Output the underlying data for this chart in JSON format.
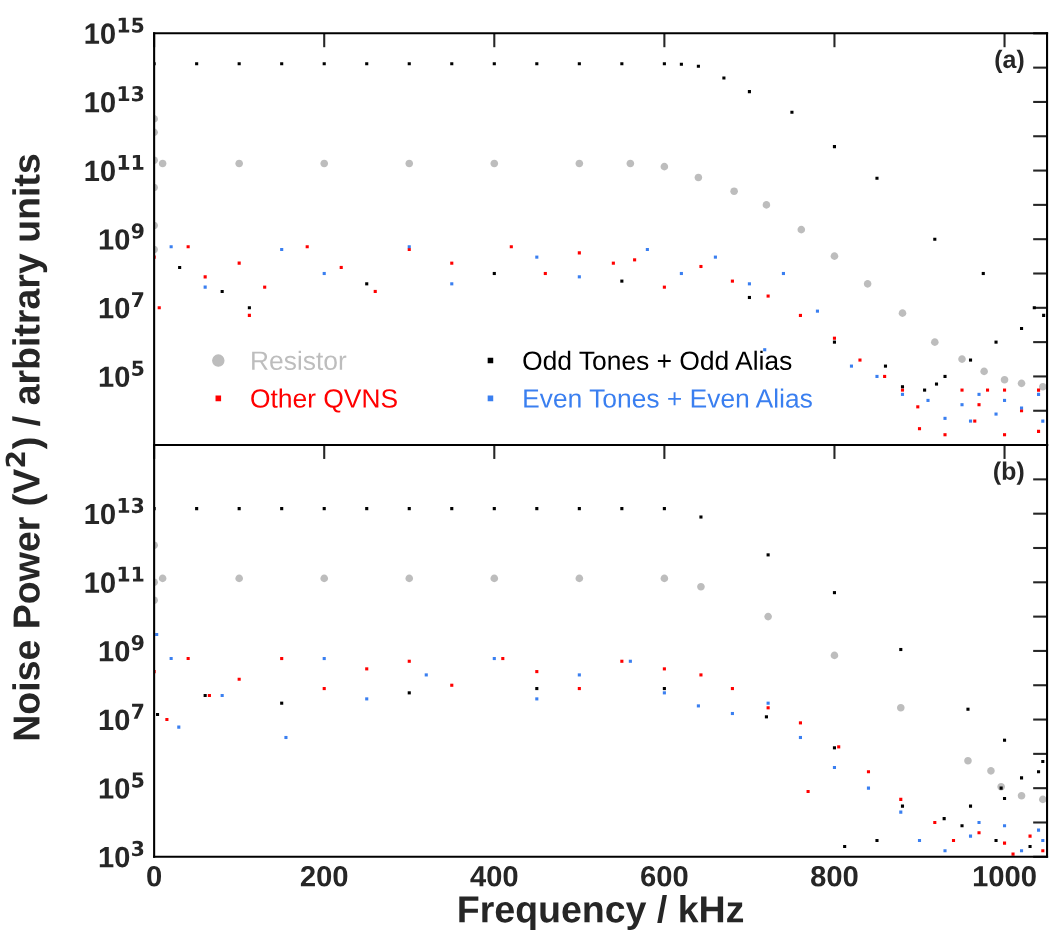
{
  "chart_data": [
    {
      "type": "scatter",
      "ylabel": "Noise Power (V$^{2}$) / arbitrary units",
      "annotations": [
        "(a)"
      ],
      "log": "y",
      "grid": false,
      "legend": "bottom",
      "tick_labels": "y",
      "xlim": [
        0,
        1050
      ],
      "xticks": [
        {
          "value": 0,
          "label": null
        },
        {
          "value": 200,
          "label": null
        },
        {
          "value": 400,
          "label": null
        },
        {
          "value": 600,
          "label": null
        },
        {
          "value": 800,
          "label": null
        },
        {
          "value": 1000,
          "label": null
        }
      ],
      "ylim": [
        1000.0,
        1000000000000000.0
      ],
      "yticks": [
        {
          "value": 10000.0,
          "label": null
        },
        {
          "value": 100000.0,
          "label": "10$^{5}$"
        },
        {
          "value": 1000000.0,
          "label": null
        },
        {
          "value": 10000000.0,
          "label": "10$^{7}$"
        },
        {
          "value": 100000000.0,
          "label": null
        },
        {
          "value": 1000000000.0,
          "label": "10$^{9}$"
        },
        {
          "value": 10000000000.0,
          "label": null
        },
        {
          "value": 100000000000.0,
          "label": "10$^{11}$"
        },
        {
          "value": 1000000000000.0,
          "label": null
        },
        {
          "value": 10000000000000.0,
          "label": "10$^{13}$"
        },
        {
          "value": 100000000000000.0,
          "label": null
        },
        {
          "value": 1000000000000000.0,
          "label": "10$^{15}$"
        }
      ],
      "series": [
        {
          "name": "Resistor",
          "color": "#bdbdbd",
          "marker": "circle",
          "x": [
            0,
            0,
            0,
            0,
            0,
            0,
            10,
            100,
            200,
            300,
            400,
            500,
            560,
            600,
            640,
            682,
            720,
            761,
            800,
            839,
            880,
            918,
            950,
            976,
            1000,
            1020,
            1045
          ],
          "values": [
            3200000000000.0,
            1300000000000.0,
            200000000000.0,
            32000000000.0,
            2500000000.0,
            500000000.0,
            160000000000.0,
            160000000000.0,
            160000000000.0,
            160000000000.0,
            160000000000.0,
            160000000000.0,
            160000000000.0,
            130000000000.0,
            63000000000.0,
            25000000000.0,
            10000000000.0,
            1900000000.0,
            320000000.0,
            50000000.0,
            7000000.0,
            1000000.0,
            320000.0,
            140000.0,
            80000.0,
            63000.0,
            50000.0
          ]
        },
        {
          "name": "Other QVNS",
          "color": "#ff0000",
          "marker": "square",
          "x": [
            0,
            6,
            40,
            60,
            100,
            112,
            130,
            180,
            220,
            260,
            300,
            350,
            420,
            460,
            500,
            540,
            565,
            600,
            643,
            680,
            722,
            760,
            800,
            830,
            859,
            880,
            898,
            900,
            930,
            950,
            980,
            1000,
            1040,
            965,
            1000,
            1040,
            1020,
            970
          ],
          "values": [
            300000000.0,
            10000000.0,
            600000000.0,
            80000000.0,
            200000000.0,
            6000000.0,
            40000000.0,
            600000000.0,
            150000000.0,
            30000000.0,
            500000000.0,
            200000000.0,
            600000000.0,
            100000000.0,
            400000000.0,
            200000000.0,
            250000000.0,
            40000000.0,
            160000000.0,
            60000000.0,
            22000000.0,
            6000000.0,
            1300000.0,
            300000.0,
            100000.0,
            40000.0,
            13000.0,
            3000.0,
            2000.0,
            40000.0,
            40000.0,
            40000.0,
            40000.0,
            5000.0,
            2000.0,
            2500.0,
            10000.0,
            15000.0
          ]
        },
        {
          "name": "Odd Tones + Odd Alias",
          "color": "#000000",
          "marker": "square",
          "x": [
            0,
            50,
            100,
            150,
            200,
            250,
            300,
            350,
            400,
            450,
            500,
            550,
            600,
            620,
            640,
            670,
            700,
            750,
            800,
            850,
            918,
            975,
            1035,
            1046,
            1020,
            990,
            960,
            930,
            906,
            920,
            30,
            112,
            80,
            250,
            400,
            550,
            700,
            800,
            860,
            880
          ],
          "values": [
            130000000000000.0,
            130000000000000.0,
            130000000000000.0,
            130000000000000.0,
            130000000000000.0,
            130000000000000.0,
            130000000000000.0,
            130000000000000.0,
            130000000000000.0,
            130000000000000.0,
            130000000000000.0,
            130000000000000.0,
            130000000000000.0,
            125000000000000.0,
            110000000000000.0,
            50000000000000.0,
            20000000000000.0,
            5000000000000.0,
            500000000000.0,
            60000000000.0,
            1000000000.0,
            100000000.0,
            10000000.0,
            6000000.0,
            2500000.0,
            1000000.0,
            300000.0,
            100000.0,
            40000.0,
            60000.0,
            150000000.0,
            10000000.0,
            30000000.0,
            50000000.0,
            100000000.0,
            60000000.0,
            20000000.0,
            1000000.0,
            200000.0,
            50000.0
          ]
        },
        {
          "name": "Even Tones + Even Alias",
          "color": "#3a7ff0",
          "marker": "square",
          "x": [
            20,
            60,
            150,
            200,
            300,
            350,
            450,
            500,
            580,
            620,
            660,
            700,
            718,
            740,
            780,
            820,
            850,
            880,
            910,
            930,
            950,
            960,
            970,
            990,
            1000,
            1020,
            1040,
            1045
          ],
          "values": [
            600000000.0,
            40000000.0,
            500000000.0,
            100000000.0,
            600000000.0,
            50000000.0,
            300000000.0,
            80000000.0,
            500000000.0,
            100000000.0,
            300000000.0,
            50000000.0,
            600000.0,
            100000000.0,
            8000000.0,
            200000.0,
            100000.0,
            30000.0,
            20000.0,
            6000.0,
            15000.0,
            5000.0,
            30000.0,
            8000.0,
            20000.0,
            12000.0,
            30000.0,
            5000.0
          ]
        }
      ]
    },
    {
      "type": "scatter",
      "xlabel": "Frequency / kHz",
      "annotations": [
        "(b)"
      ],
      "log": "y",
      "grid": false,
      "xlim": [
        0,
        1050
      ],
      "xticks": [
        0,
        200,
        400,
        600,
        800,
        1000
      ],
      "ylim": [
        1000.0,
        1000000000000000.0
      ],
      "yticks": [
        {
          "value": 1000.0,
          "label": "10$^{3}$"
        },
        {
          "value": 10000.0,
          "label": null
        },
        {
          "value": 100000.0,
          "label": "10$^{5}$"
        },
        {
          "value": 1000000.0,
          "label": null
        },
        {
          "value": 10000000.0,
          "label": "10$^{7}$"
        },
        {
          "value": 100000000.0,
          "label": null
        },
        {
          "value": 1000000000.0,
          "label": "10$^{9}$"
        },
        {
          "value": 10000000000.0,
          "label": null
        },
        {
          "value": 100000000000.0,
          "label": "10$^{11}$"
        },
        {
          "value": 1000000000000.0,
          "label": null
        },
        {
          "value": 10000000000000.0,
          "label": "10$^{13}$"
        },
        {
          "value": 100000000000000.0,
          "label": null
        }
      ],
      "series": [
        {
          "color": "#bdbdbd",
          "marker": "circle",
          "x": [
            0,
            0,
            0,
            10,
            100,
            200,
            300,
            400,
            500,
            600,
            643,
            722,
            800,
            878,
            957,
            984,
            996,
            1020,
            1045
          ],
          "values": [
            1200000000000.0,
            100000000000.0,
            30000000000.0,
            130000000000.0,
            130000000000.0,
            130000000000.0,
            130000000000.0,
            130000000000.0,
            130000000000.0,
            130000000000.0,
            74000000000.0,
            10000000000.0,
            740000000.0,
            22000000.0,
            630000.0,
            320000.0,
            110000.0,
            60000.0,
            47000.0
          ]
        },
        {
          "color": "#ff0000",
          "marker": "square",
          "x": [
            0,
            15,
            40,
            65,
            100,
            150,
            200,
            250,
            300,
            350,
            410,
            450,
            500,
            550,
            600,
            643,
            680,
            722,
            769,
            760,
            805,
            840,
            878,
            918,
            940,
            970,
            1000,
            1030,
            1045,
            1010
          ],
          "values": [
            250000000.0,
            10000000.0,
            600000000.0,
            50000000.0,
            150000000.0,
            600000000.0,
            80000000.0,
            300000000.0,
            500000000.0,
            100000000.0,
            600000000.0,
            250000000.0,
            80000000.0,
            500000000.0,
            300000000.0,
            200000000.0,
            80000000.0,
            22000000.0,
            80000.0,
            8000000.0,
            1600000.0,
            300000.0,
            47000.0,
            10000.0,
            3000.0,
            5000.0,
            2500.0,
            4000.0,
            1500.0,
            1200.0
          ]
        },
        {
          "color": "#000000",
          "marker": "square",
          "x": [
            0,
            50,
            100,
            150,
            200,
            250,
            300,
            350,
            400,
            450,
            500,
            550,
            600,
            643,
            722,
            800,
            878,
            957,
            1000,
            1045,
            1020,
            996,
            960,
            929,
            950,
            1000,
            1040,
            4,
            60,
            150,
            300,
            450,
            600,
            720,
            800,
            812,
            850,
            880,
            990,
            1030
          ],
          "values": [
            14000000000000.0,
            14000000000000.0,
            14000000000000.0,
            14000000000000.0,
            14000000000000.0,
            14000000000000.0,
            14000000000000.0,
            14000000000000.0,
            14000000000000.0,
            14000000000000.0,
            14000000000000.0,
            14000000000000.0,
            14000000000000.0,
            8000000000000.0,
            630000000000.0,
            50000000000.0,
            1100000000.0,
            20000000.0,
            2500000.0,
            600000.0,
            200000.0,
            100000.0,
            30000.0,
            13000.0,
            8000.0,
            50000.0,
            300000.0,
            14000000.0,
            50000000.0,
            30000000.0,
            60000000.0,
            80000000.0,
            80000000.0,
            12000000.0,
            1500000.0,
            2000.0,
            3000.0,
            30000.0,
            3000.0,
            2000.0
          ]
        },
        {
          "color": "#3a7ff0",
          "marker": "square",
          "x": [
            3,
            20,
            29,
            80,
            155,
            200,
            250,
            320,
            400,
            450,
            500,
            560,
            600,
            640,
            680,
            722,
            760,
            800,
            840,
            878,
            900,
            930,
            960,
            1000,
            1040,
            1020,
            1045,
            970
          ],
          "values": [
            3000000000.0,
            600000000.0,
            6000000.0,
            50000000.0,
            3000000.0,
            600000000.0,
            40000000.0,
            200000000.0,
            600000000.0,
            40000000.0,
            200000000.0,
            500000000.0,
            60000000.0,
            25000000.0,
            15000000.0,
            30000000.0,
            3000000.0,
            400000.0,
            100000.0,
            20000.0,
            3000.0,
            1500.0,
            4000.0,
            8000.0,
            6000.0,
            1500.0,
            3000.0,
            10000.0
          ]
        }
      ]
    }
  ]
}
